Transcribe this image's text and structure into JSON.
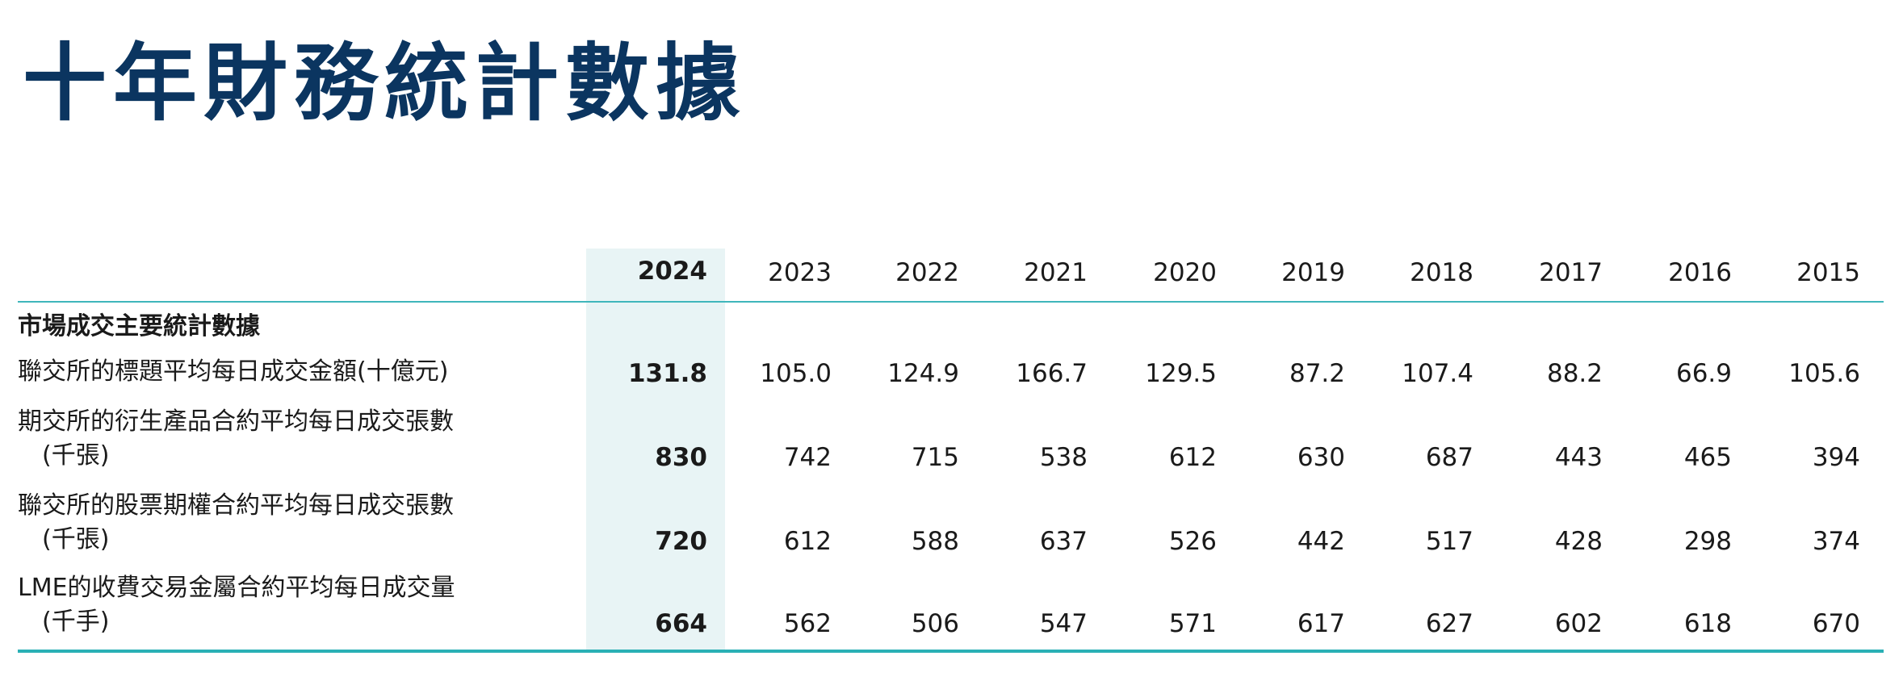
{
  "title": "十年財務統計數據",
  "years": [
    "2024",
    "2023",
    "2022",
    "2021",
    "2020",
    "2019",
    "2018",
    "2017",
    "2016",
    "2015"
  ],
  "section_title": "市場成交主要統計數據",
  "rows": [
    {
      "label_lines": [
        "聯交所的標題平均每日成交金額(十億元)"
      ],
      "values": [
        "131.8",
        "105.0",
        "124.9",
        "166.7",
        "129.5",
        "87.2",
        "107.4",
        "88.2",
        "66.9",
        "105.6"
      ]
    },
    {
      "label_lines": [
        "期交所的衍生產品合約平均每日成交張數",
        "(千張)"
      ],
      "values": [
        "830",
        "742",
        "715",
        "538",
        "612",
        "630",
        "687",
        "443",
        "465",
        "394"
      ]
    },
    {
      "label_lines": [
        "聯交所的股票期權合約平均每日成交張數",
        "(千張)"
      ],
      "values": [
        "720",
        "612",
        "588",
        "637",
        "526",
        "442",
        "517",
        "428",
        "298",
        "374"
      ]
    },
    {
      "label_lines": [
        "LME的收費交易金屬合約平均每日成交量",
        "(千手)"
      ],
      "values": [
        "664",
        "562",
        "506",
        "547",
        "571",
        "617",
        "627",
        "602",
        "618",
        "670"
      ]
    }
  ],
  "colors": {
    "title": "#0b3560",
    "highlight": "#e8f4f5",
    "rule": "#3fb6bb"
  }
}
